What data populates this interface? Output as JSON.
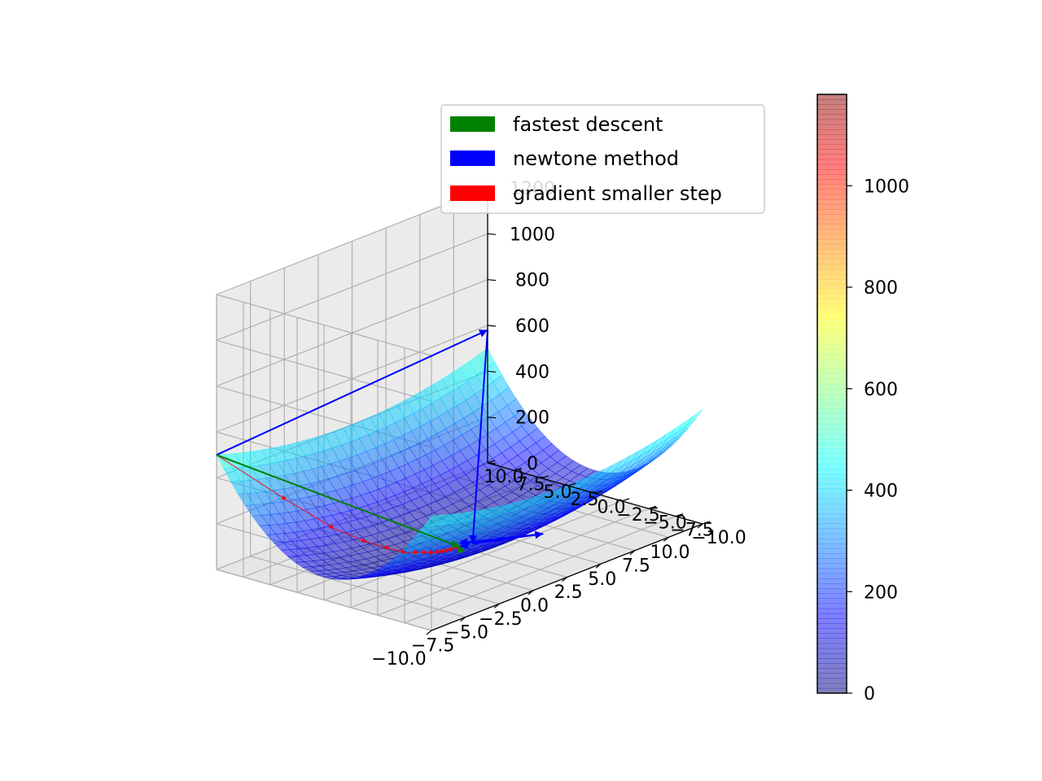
{
  "chart_data": {
    "type": "surface3d",
    "surface_function": "x^2 + 4*y^2",
    "x_range": [
      -10,
      10
    ],
    "y_range": [
      -10,
      10
    ],
    "z_range": [
      0,
      1200
    ],
    "x_tick_labels": [
      "−10.0",
      "−7.5",
      "−5.0",
      "−2.5",
      "0.0",
      "2.5",
      "5.0",
      "7.5",
      "10.0"
    ],
    "y_tick_labels": [
      "−10.0",
      "−7.5",
      "−5.0",
      "−2.5",
      "0.0",
      "2.5",
      "5.0",
      "7.5",
      "10.0"
    ],
    "z_tick_labels": [
      "0",
      "200",
      "400",
      "600",
      "800",
      "1000",
      "1200"
    ],
    "colorbar": {
      "colormap": "jet",
      "range": [
        0,
        1180
      ],
      "tick_labels": [
        "0",
        "200",
        "400",
        "600",
        "800",
        "1000"
      ]
    },
    "legend": {
      "placement": "upper-right",
      "entries": [
        {
          "label": "fastest descent",
          "color": "#008000"
        },
        {
          "label": "newtone method",
          "color": "#0000ff"
        },
        {
          "label": "gradient smaller step",
          "color": "#ff0000"
        }
      ]
    },
    "series": [
      {
        "name": "fastest descent",
        "color": "#008000",
        "points": [
          [
            -10,
            10,
            500
          ],
          [
            0,
            0,
            0
          ],
          [
            0.2,
            0.3,
            0
          ],
          [
            0.1,
            0.1,
            0
          ],
          [
            0,
            0,
            0
          ]
        ]
      },
      {
        "name": "newtone method",
        "color": "#0000ff",
        "points": [
          [
            -10,
            10,
            500
          ],
          [
            10,
            10,
            580
          ],
          [
            -3,
            -5,
            150
          ],
          [
            3,
            -4,
            40
          ],
          [
            0,
            0,
            15
          ],
          [
            0.5,
            -0.3,
            5
          ],
          [
            0,
            0,
            0
          ]
        ]
      },
      {
        "name": "gradient smaller step",
        "color": "#ff0000",
        "points": [
          [
            -10,
            10,
            500
          ],
          [
            -8,
            6,
            310
          ],
          [
            -6.4,
            3.6,
            180
          ],
          [
            -5.1,
            2.2,
            110
          ],
          [
            -4.1,
            1.3,
            70
          ],
          [
            -3.3,
            0.8,
            40
          ],
          [
            -2.6,
            0.5,
            30
          ],
          [
            -2.1,
            0.3,
            20
          ],
          [
            -1.7,
            0.2,
            12
          ],
          [
            -1.3,
            0.1,
            8
          ],
          [
            -1.0,
            0.05,
            5
          ],
          [
            -0.7,
            0.03,
            3
          ],
          [
            -0.4,
            0.02,
            2
          ],
          [
            0,
            0,
            0
          ]
        ]
      }
    ]
  }
}
